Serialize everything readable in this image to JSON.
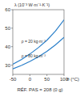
{
  "chart_data": {
    "type": "line",
    "y_label": "λ (10⁻³ W·m⁻¹·K⁻¹)",
    "x_label": "θ (°C)",
    "caption": "RÉF. PAS = 208 (0 g)",
    "x": [
      -50,
      -25,
      0,
      25,
      50,
      75,
      100
    ],
    "xlim": [
      -50,
      100
    ],
    "xticks": [
      -50,
      0,
      50,
      100
    ],
    "ylim": [
      25,
      60
    ],
    "yticks": [
      30,
      40,
      50,
      60
    ],
    "grid": false,
    "series": [
      {
        "name": "ρ = 20 kg·m⁻³",
        "color": "#2a7fc9",
        "values": [
          30.5,
          33,
          36,
          39.5,
          43.5,
          48.5,
          54.5
        ]
      },
      {
        "name": "ρ = 80 kg·m⁻³",
        "color": "#2a7fc9",
        "values": [
          28,
          29.8,
          32,
          34.5,
          37.5,
          41,
          45
        ]
      }
    ]
  }
}
